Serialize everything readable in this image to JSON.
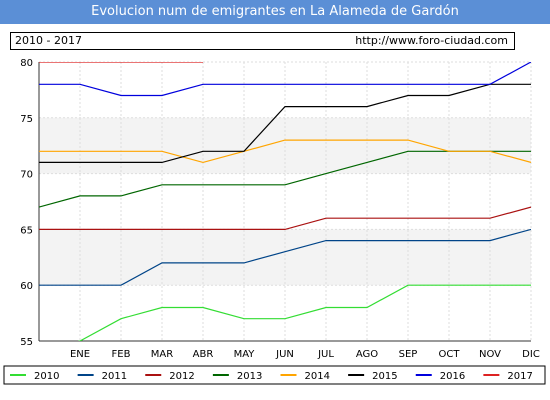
{
  "header": {
    "title": "Evolucion num de emigrantes en La Alameda de Gardón",
    "period": "2010 - 2017",
    "source": "http://www.foro-ciudad.com"
  },
  "chart_data": {
    "type": "line",
    "title": "Evolucion num de emigrantes en La Alameda de Gardón",
    "xlabel": "",
    "ylabel": "",
    "x": [
      "",
      "ENE",
      "FEB",
      "MAR",
      "ABR",
      "MAY",
      "JUN",
      "JUL",
      "AGO",
      "SEP",
      "OCT",
      "NOV",
      "DIC"
    ],
    "ylim": [
      55,
      80
    ],
    "yticks": [
      55,
      60,
      65,
      70,
      75,
      80
    ],
    "grid": true,
    "legend_position": "bottom",
    "series": [
      {
        "name": "2010",
        "color": "#33dd33",
        "values": [
          54,
          55,
          57,
          58,
          58,
          57,
          57,
          58,
          58,
          60,
          60,
          60,
          60
        ]
      },
      {
        "name": "2011",
        "color": "#004488",
        "values": [
          60,
          60,
          60,
          62,
          62,
          62,
          63,
          64,
          64,
          64,
          64,
          64,
          65
        ]
      },
      {
        "name": "2012",
        "color": "#aa1111",
        "values": [
          65,
          65,
          65,
          65,
          65,
          65,
          65,
          66,
          66,
          66,
          66,
          66,
          67
        ]
      },
      {
        "name": "2013",
        "color": "#006600",
        "values": [
          67,
          68,
          68,
          69,
          69,
          69,
          69,
          70,
          71,
          72,
          72,
          72,
          72
        ]
      },
      {
        "name": "2014",
        "color": "#ffa500",
        "values": [
          72,
          72,
          72,
          72,
          71,
          72,
          73,
          73,
          73,
          73,
          72,
          72,
          71
        ]
      },
      {
        "name": "2015",
        "color": "#000000",
        "values": [
          71,
          71,
          71,
          71,
          72,
          72,
          76,
          76,
          76,
          77,
          77,
          78,
          78
        ]
      },
      {
        "name": "2016",
        "color": "#0000dd",
        "values": [
          78,
          78,
          77,
          77,
          78,
          78,
          78,
          78,
          78,
          78,
          78,
          78,
          80
        ]
      },
      {
        "name": "2017",
        "color": "#dd2222",
        "values": [
          80,
          80,
          80,
          80,
          80,
          null,
          null,
          null,
          null,
          null,
          null,
          null,
          null
        ]
      }
    ]
  }
}
